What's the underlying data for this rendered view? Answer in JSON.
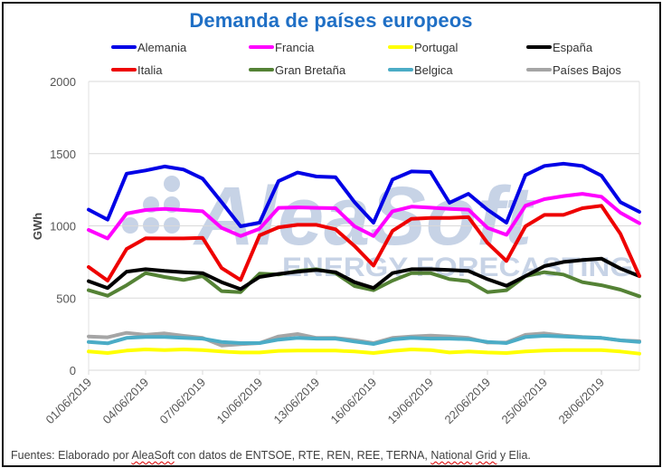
{
  "chart_data": {
    "type": "line",
    "title": "Demanda de países europeos",
    "xlabel": "",
    "ylabel": "GWh",
    "ylim": [
      0,
      2000
    ],
    "yticks": [
      "0",
      "500",
      "1000",
      "1500",
      "2000"
    ],
    "ytick_values": [
      0,
      500,
      1000,
      1500,
      2000
    ],
    "grid": true,
    "legend_position": "top",
    "x": [
      "01/06/2019",
      "02/06/2019",
      "03/06/2019",
      "04/06/2019",
      "05/06/2019",
      "06/06/2019",
      "07/06/2019",
      "08/06/2019",
      "09/06/2019",
      "10/06/2019",
      "11/06/2019",
      "12/06/2019",
      "13/06/2019",
      "14/06/2019",
      "15/06/2019",
      "16/06/2019",
      "17/06/2019",
      "18/06/2019",
      "19/06/2019",
      "20/06/2019",
      "21/06/2019",
      "22/06/2019",
      "23/06/2019",
      "24/06/2019",
      "25/06/2019",
      "26/06/2019",
      "27/06/2019",
      "28/06/2019",
      "29/06/2019",
      "30/06/2019"
    ],
    "xtick_labels": [
      "01/06/2019",
      "04/06/2019",
      "07/06/2019",
      "10/06/2019",
      "13/06/2019",
      "16/06/2019",
      "19/06/2019",
      "22/06/2019",
      "25/06/2019",
      "28/06/2019"
    ],
    "xtick_indices": [
      0,
      3,
      6,
      9,
      12,
      15,
      18,
      21,
      24,
      27
    ],
    "series": [
      {
        "name": "Alemania",
        "color": "#0000e6",
        "values": [
          1112,
          1043,
          1362,
          1384,
          1411,
          1390,
          1327,
          1164,
          997,
          1022,
          1310,
          1369,
          1342,
          1337,
          1164,
          1022,
          1321,
          1377,
          1373,
          1160,
          1222,
          1112,
          1022,
          1352,
          1415,
          1431,
          1415,
          1348,
          1164,
          1097
        ]
      },
      {
        "name": "Francia",
        "color": "#ff00ff",
        "values": [
          972,
          913,
          1085,
          1110,
          1118,
          1110,
          1101,
          986,
          930,
          980,
          1125,
          1128,
          1125,
          1122,
          997,
          930,
          1101,
          1133,
          1126,
          1118,
          1112,
          986,
          938,
          1139,
          1185,
          1206,
          1222,
          1202,
          1091,
          1018
        ]
      },
      {
        "name": "Portugal",
        "color": "#ffff00",
        "values": [
          130,
          119,
          136,
          144,
          140,
          144,
          140,
          130,
          123,
          123,
          134,
          136,
          136,
          136,
          130,
          119,
          134,
          144,
          140,
          123,
          130,
          123,
          119,
          130,
          136,
          140,
          140,
          140,
          130,
          115
        ]
      },
      {
        "name": "España",
        "color": "#000000",
        "values": [
          617,
          569,
          683,
          700,
          688,
          679,
          673,
          610,
          562,
          646,
          667,
          683,
          694,
          679,
          610,
          569,
          673,
          700,
          700,
          694,
          688,
          631,
          585,
          652,
          721,
          750,
          763,
          773,
          704,
          652
        ]
      },
      {
        "name": "Italia",
        "color": "#ee0000",
        "values": [
          715,
          621,
          840,
          914,
          913,
          913,
          917,
          708,
          625,
          934,
          990,
          1007,
          1007,
          976,
          861,
          725,
          965,
          1049,
          1055,
          1055,
          1060,
          882,
          757,
          997,
          1076,
          1076,
          1122,
          1139,
          945,
          652
        ]
      },
      {
        "name": "Gran Bretaña",
        "color": "#548235",
        "values": [
          554,
          516,
          589,
          673,
          646,
          625,
          652,
          548,
          541,
          669,
          663,
          688,
          700,
          673,
          583,
          554,
          621,
          673,
          673,
          631,
          617,
          541,
          554,
          652,
          679,
          663,
          610,
          589,
          558,
          512
        ]
      },
      {
        "name": "Belgica",
        "color": "#4bacc6",
        "values": [
          196,
          186,
          224,
          230,
          230,
          224,
          219,
          196,
          188,
          188,
          212,
          224,
          219,
          219,
          199,
          182,
          213,
          224,
          219,
          219,
          215,
          196,
          188,
          230,
          238,
          234,
          228,
          224,
          207,
          196
        ]
      },
      {
        "name": "Países Bajos",
        "color": "#a5a5a5",
        "values": [
          234,
          228,
          259,
          245,
          255,
          238,
          224,
          171,
          180,
          188,
          234,
          251,
          224,
          224,
          209,
          188,
          224,
          234,
          240,
          234,
          224,
          192,
          192,
          245,
          255,
          240,
          230,
          224,
          207,
          201
        ]
      }
    ]
  },
  "watermark": {
    "brand": "AleaSoft",
    "tagline": "ENERGY FORECASTING"
  },
  "footer": {
    "prefix": "Fuentes: Elaborado por ",
    "brand": "AleaSoft",
    "middle": " con datos de ENTSOE, RTE, REN, REE, TERNA, ",
    "national": "National",
    "space": " ",
    "grid": "Grid",
    "suffix": " y Elia."
  }
}
